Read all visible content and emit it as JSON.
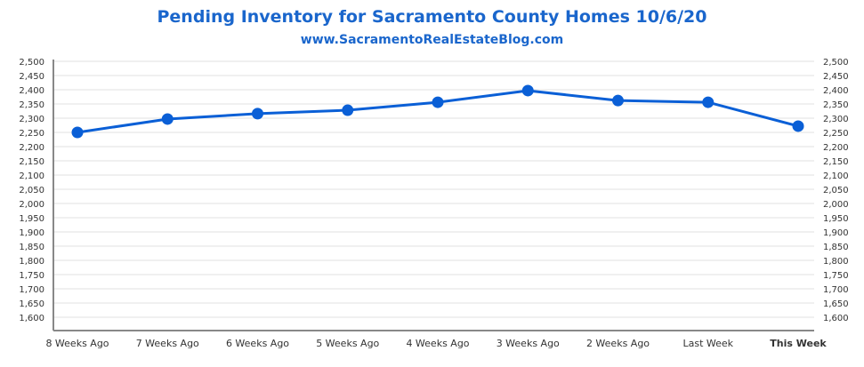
{
  "chart_data": {
    "type": "line",
    "title": "Pending Inventory for Sacramento County Homes 10/6/20",
    "subtitle": "www.SacramentoRealEstateBlog.com",
    "xlabel": "",
    "ylabel": "",
    "categories": [
      "8 Weeks Ago",
      "7 Weeks Ago",
      "6 Weeks Ago",
      "5 Weeks Ago",
      "4 Weeks Ago",
      "3 Weeks Ago",
      "2 Weeks Ago",
      "Last Week",
      "This Week"
    ],
    "highlight_category": "This Week",
    "series": [
      {
        "name": "Pending Inventory",
        "values": [
          2250,
          2297,
          2316,
          2328,
          2356,
          2397,
          2362,
          2356,
          2272
        ]
      }
    ],
    "ylim": [
      1550,
      2500
    ],
    "yticks": [
      "2,500",
      "2,450",
      "2,400",
      "2,350",
      "2,300",
      "2,250",
      "2,200",
      "2,150",
      "2,100",
      "2,050",
      "2,000",
      "1,950",
      "1,900",
      "1,850",
      "1,800",
      "1,750",
      "1,700",
      "1,650",
      "1,600"
    ],
    "ytick_values": [
      2500,
      2450,
      2400,
      2350,
      2300,
      2250,
      2200,
      2150,
      2100,
      2050,
      2000,
      1950,
      1900,
      1850,
      1800,
      1750,
      1700,
      1650,
      1600
    ],
    "grid": true,
    "legend": "none",
    "colors": {
      "line": "#0a5fd6",
      "title": "#1a66cc",
      "grid": "#ececec",
      "axis": "#888888"
    }
  }
}
